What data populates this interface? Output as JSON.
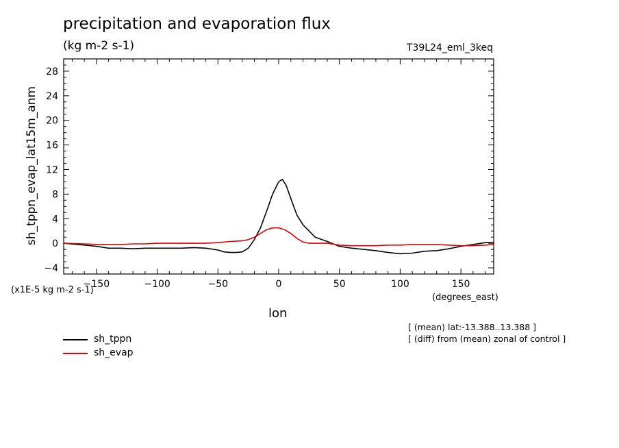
{
  "header": {
    "title": "precipitation and evaporation flux",
    "units": "(kg m-2 s-1)",
    "run": "T39L24_eml_3keq"
  },
  "axes": {
    "ylabel": "sh_tppn_evap_lat15m_anm",
    "yunits": "(x1E-5 kg m-2 s-1)",
    "xlabel": "lon",
    "xunits": "(degrees_east)"
  },
  "notes": {
    "line1": "[ (mean) lat:-13.388..13.388 ]",
    "line2": "[ (diff) from (mean) zonal of control ]"
  },
  "legend": [
    {
      "label": "sh_tppn",
      "color": "#000000"
    },
    {
      "label": "sh_evap",
      "color": "#e00000"
    }
  ],
  "chart_data": {
    "type": "line",
    "title": "precipitation and evaporation flux",
    "subtitle": "(kg m-2 s-1)",
    "xlabel": "lon",
    "ylabel": "sh_tppn_evap_lat15m_anm",
    "xlim": [
      -177,
      177
    ],
    "ylim": [
      -5,
      30
    ],
    "xticks": [
      -150,
      -100,
      -50,
      0,
      50,
      100,
      150
    ],
    "yticks": [
      -4,
      0,
      4,
      8,
      12,
      16,
      20,
      24,
      28
    ],
    "grid": false,
    "legend_position": "bottom-left",
    "series": [
      {
        "name": "sh_tppn",
        "color": "#000000",
        "x": [
          -177,
          -160,
          -150,
          -140,
          -130,
          -120,
          -110,
          -100,
          -90,
          -80,
          -70,
          -60,
          -50,
          -45,
          -40,
          -35,
          -30,
          -25,
          -20,
          -15,
          -10,
          -5,
          0,
          3,
          6,
          10,
          15,
          20,
          25,
          30,
          40,
          50,
          60,
          70,
          80,
          90,
          100,
          110,
          120,
          130,
          140,
          150,
          160,
          170,
          177
        ],
        "y": [
          0.0,
          -0.3,
          -0.5,
          -0.8,
          -0.8,
          -0.9,
          -0.8,
          -0.8,
          -0.8,
          -0.8,
          -0.7,
          -0.8,
          -1.1,
          -1.4,
          -1.5,
          -1.5,
          -1.4,
          -0.8,
          0.6,
          2.5,
          5.2,
          8.0,
          10.0,
          10.4,
          9.5,
          7.3,
          4.6,
          3.0,
          2.0,
          1.0,
          0.3,
          -0.5,
          -0.8,
          -1.0,
          -1.2,
          -1.5,
          -1.7,
          -1.6,
          -1.3,
          -1.2,
          -0.9,
          -0.5,
          -0.2,
          0.1,
          0.1
        ]
      },
      {
        "name": "sh_evap",
        "color": "#e00000",
        "x": [
          -177,
          -160,
          -150,
          -140,
          -130,
          -120,
          -110,
          -100,
          -90,
          -80,
          -70,
          -60,
          -50,
          -40,
          -30,
          -25,
          -20,
          -15,
          -10,
          -5,
          0,
          5,
          10,
          15,
          20,
          25,
          30,
          40,
          50,
          60,
          70,
          80,
          90,
          100,
          110,
          120,
          130,
          140,
          150,
          160,
          170,
          177
        ],
        "y": [
          0.0,
          -0.1,
          -0.2,
          -0.2,
          -0.2,
          -0.1,
          -0.1,
          0.0,
          0.0,
          0.0,
          0.0,
          0.0,
          0.1,
          0.3,
          0.4,
          0.6,
          1.0,
          1.6,
          2.2,
          2.5,
          2.5,
          2.2,
          1.6,
          0.8,
          0.2,
          0.0,
          0.0,
          0.0,
          -0.3,
          -0.4,
          -0.4,
          -0.4,
          -0.3,
          -0.3,
          -0.2,
          -0.2,
          -0.2,
          -0.3,
          -0.4,
          -0.4,
          -0.3,
          -0.2
        ]
      }
    ]
  }
}
